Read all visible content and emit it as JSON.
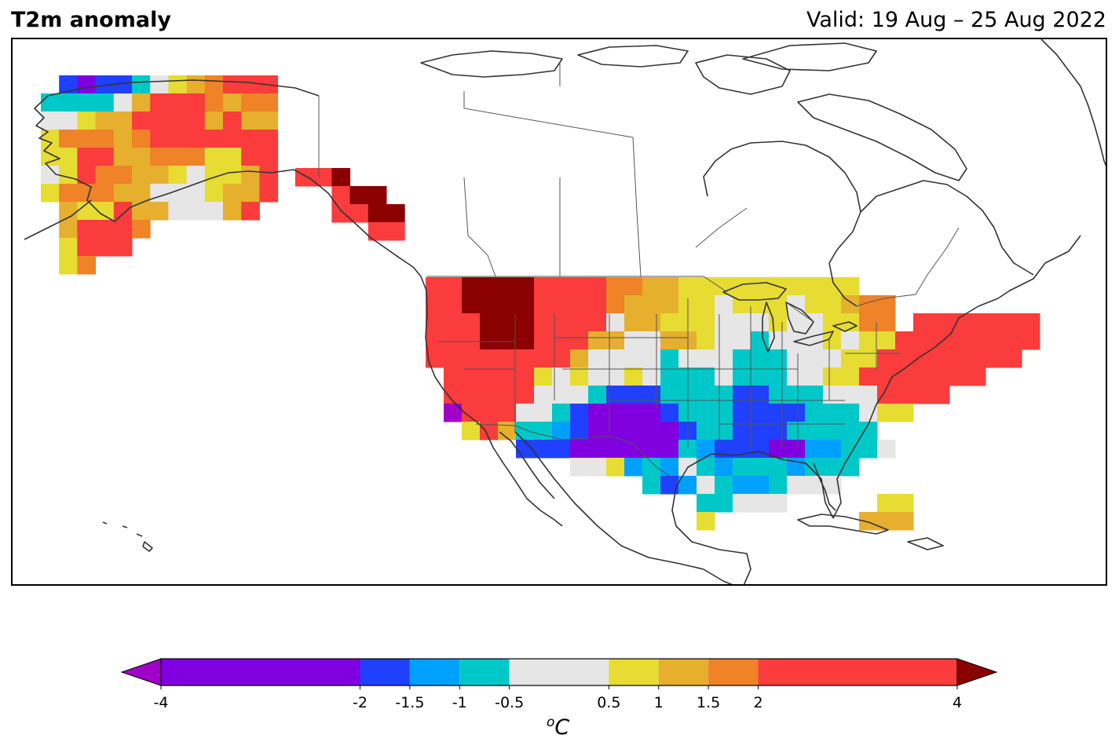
{
  "header": {
    "title": "T2m anomaly",
    "valid": "Valid: 19 Aug – 25 Aug 2022"
  },
  "colorbar": {
    "unit_sup": "o",
    "unit_main": "C",
    "bounds": [
      -4,
      -2,
      -1.5,
      -1,
      -0.5,
      0.5,
      1,
      1.5,
      2,
      4
    ],
    "tick_labels": [
      "-4",
      "-2",
      "-1.5",
      "-1",
      "-0.5",
      "0.5",
      "1",
      "1.5",
      "2",
      "4"
    ],
    "colors": [
      "#8000e0",
      "#2040ff",
      "#00a0ff",
      "#00c8c8",
      "#e6e6e6",
      "#e6dc32",
      "#e6af2d",
      "#f08228",
      "#fa3c3c"
    ],
    "under_color": "#a000c8",
    "over_color": "#8b0000",
    "extend": "both"
  },
  "map": {
    "region": "North America",
    "variable": "2 m temperature anomaly",
    "units": "degC"
  }
}
